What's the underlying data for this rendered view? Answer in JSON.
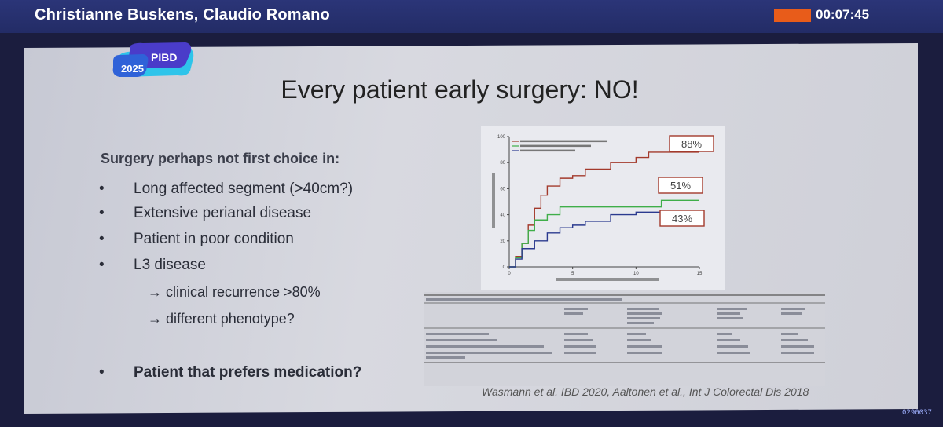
{
  "header": {
    "speakers": "Christianne Buskens, Claudio Romano",
    "timer": "00:07:45",
    "rec_color": "#e85c1a"
  },
  "logo": {
    "name": "PIBD",
    "year": "2025"
  },
  "slide": {
    "title": "Every patient early surgery: NO!",
    "intro": "Surgery perhaps not first choice in:",
    "bullet_glyph": "•",
    "bullets": [
      "Long affected segment (>40cm?)",
      "Extensive perianal disease",
      "Patient in poor condition",
      "L3 disease"
    ],
    "sub_bullets": [
      "→ clinical recurrence >80%",
      "→ different phenotype?"
    ],
    "final_bullet": "Patient that prefers medication?",
    "citation": "Wasmann et al. IBD 2020, Aaltonen et al., Int J Colorectal Dis 2018"
  },
  "chart_data": {
    "type": "line",
    "xlim": [
      0,
      15
    ],
    "ylim": [
      0,
      100
    ],
    "x_ticks": [
      "0",
      "5",
      "10",
      "15"
    ],
    "y_ticks": [
      "0",
      "20",
      "40",
      "60",
      "80",
      "100"
    ],
    "annotations": [
      "88%",
      "51%",
      "43%"
    ],
    "colors": {
      "red": "#a33a2c",
      "green": "#3fae49",
      "blue": "#2b3a8f"
    },
    "series": [
      {
        "color": "red",
        "x": [
          0,
          0.5,
          1,
          1.5,
          2,
          2.5,
          3,
          4,
          5,
          6,
          8,
          10,
          11,
          15
        ],
        "y": [
          0,
          8,
          18,
          32,
          45,
          55,
          62,
          68,
          70,
          75,
          80,
          84,
          88,
          88
        ]
      },
      {
        "color": "green",
        "x": [
          0,
          0.5,
          1,
          1.5,
          2,
          3,
          4,
          5,
          10,
          12,
          15
        ],
        "y": [
          0,
          7,
          18,
          28,
          36,
          40,
          46,
          46,
          46,
          51,
          51
        ]
      },
      {
        "color": "blue",
        "x": [
          0,
          0.5,
          1,
          2,
          3,
          4,
          5,
          6,
          8,
          10,
          12,
          15
        ],
        "y": [
          0,
          6,
          14,
          20,
          26,
          30,
          32,
          35,
          40,
          42,
          43,
          43
        ]
      }
    ]
  },
  "footer": {
    "corner_code": "0290037"
  }
}
